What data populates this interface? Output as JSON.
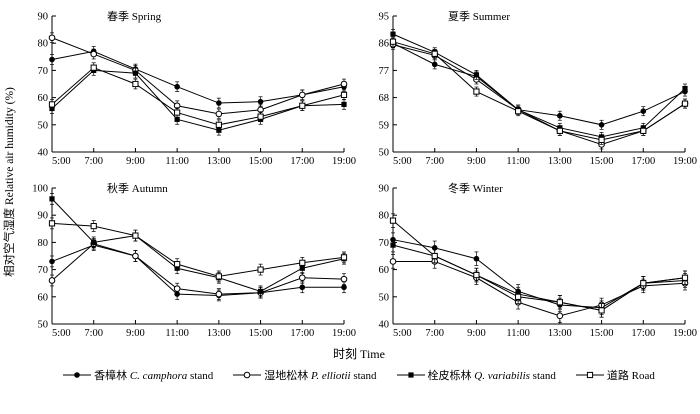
{
  "figure": {
    "y_axis_label": "相对空气湿度  Relative air humidity (%)",
    "x_axis_label": "时刻 Time"
  },
  "legend": {
    "items": [
      {
        "marker": "circle-filled",
        "cn": "香樟林",
        "latin": "C. camphora",
        "suffix": "stand"
      },
      {
        "marker": "circle-open",
        "cn": "湿地松林",
        "latin": "P. elliotii",
        "suffix": "stand"
      },
      {
        "marker": "square-filled",
        "cn": "栓皮栎林",
        "latin": "Q. variabilis",
        "suffix": "stand"
      },
      {
        "marker": "square-open",
        "cn": "道路",
        "latin": "",
        "suffix": "Road"
      }
    ]
  },
  "chart_data": {
    "type": "line",
    "x_categories": [
      "5:00",
      "7:00",
      "9:00",
      "11:00",
      "13:00",
      "15:00",
      "17:00",
      "19:00"
    ],
    "xlabel": "时刻 Time",
    "ylabel": "相对空气湿度 Relative air humidity (%)",
    "legend_position": "bottom",
    "grid": false,
    "error_bars": true,
    "charts": [
      {
        "title": "春季 Spring",
        "ylim": [
          40,
          90
        ],
        "yticks": [
          40,
          50,
          60,
          70,
          80,
          90
        ],
        "error": 1.8,
        "series": [
          {
            "name": "C. camphora stand",
            "marker": "circle-filled",
            "values": [
              74,
              77,
              70.5,
              64,
              58,
              58.5,
              61,
              64
            ]
          },
          {
            "name": "P. elliotii stand",
            "marker": "circle-open",
            "values": [
              82,
              76,
              70,
              57,
              54,
              55.5,
              61,
              65
            ]
          },
          {
            "name": "Q. variabilis stand",
            "marker": "square-filled",
            "values": [
              56,
              70,
              69,
              52,
              48,
              52,
              57,
              57.5
            ]
          },
          {
            "name": "Road",
            "marker": "square-open",
            "values": [
              57.5,
              71,
              65,
              54.5,
              50,
              53,
              57,
              61
            ]
          }
        ]
      },
      {
        "title": "夏季 Summer",
        "ylim": [
          50,
          95
        ],
        "yticks": [
          50,
          59,
          68,
          77,
          86,
          95
        ],
        "error": 1.5,
        "series": [
          {
            "name": "C. camphora stand",
            "marker": "circle-filled",
            "values": [
              86,
              79,
              75,
              64,
              62,
              59,
              63.5,
              70
            ]
          },
          {
            "name": "P. elliotii stand",
            "marker": "circle-open",
            "values": [
              85.5,
              82,
              74,
              64,
              57,
              52.5,
              57,
              66
            ]
          },
          {
            "name": "Q. variabilis stand",
            "marker": "square-filled",
            "values": [
              89,
              83,
              75.5,
              64,
              58,
              55,
              58,
              71
            ]
          },
          {
            "name": "Road",
            "marker": "square-open",
            "values": [
              86.5,
              82.5,
              70,
              63.5,
              57,
              54,
              57,
              66
            ]
          }
        ]
      },
      {
        "title": "秋季 Autumn",
        "ylim": [
          50,
          100
        ],
        "yticks": [
          50,
          60,
          70,
          80,
          90,
          100
        ],
        "error": 2,
        "series": [
          {
            "name": "C. camphora stand",
            "marker": "circle-filled",
            "values": [
              73,
              79,
              75,
              61,
              60.5,
              61.5,
              63.5,
              63.5
            ]
          },
          {
            "name": "P. elliotii stand",
            "marker": "circle-open",
            "values": [
              66,
              79.5,
              75,
              63,
              61,
              61.5,
              67,
              66.5
            ]
          },
          {
            "name": "Q. variabilis stand",
            "marker": "square-filled",
            "values": [
              96,
              80,
              82.5,
              70.5,
              67,
              62,
              70.5,
              74
            ]
          },
          {
            "name": "Road",
            "marker": "square-open",
            "values": [
              87,
              86,
              82.5,
              72,
              67.5,
              70,
              72.5,
              74.5
            ]
          }
        ]
      },
      {
        "title": "冬季 Winter",
        "ylim": [
          40,
          90
        ],
        "yticks": [
          40,
          50,
          60,
          70,
          80,
          90
        ],
        "error": 2.5,
        "series": [
          {
            "name": "C. camphora stand",
            "marker": "circle-filled",
            "values": [
              71,
              68,
              64,
              52,
              47,
              46,
              55,
              56
            ]
          },
          {
            "name": "P. elliotii stand",
            "marker": "circle-open",
            "values": [
              63,
              63,
              57,
              48,
              43,
              47,
              54,
              55
            ]
          },
          {
            "name": "Q. variabilis stand",
            "marker": "square-filled",
            "values": [
              69,
              65,
              58,
              51,
              48,
              45,
              55,
              57
            ]
          },
          {
            "name": "Road",
            "marker": "square-open",
            "values": [
              78,
              65,
              58,
              50,
              48,
              45,
              55,
              57
            ]
          }
        ]
      }
    ]
  }
}
